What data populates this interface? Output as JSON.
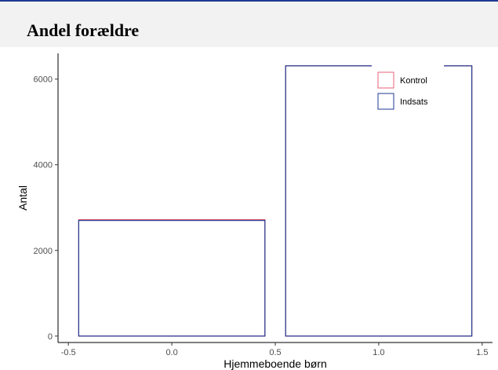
{
  "header": {
    "title": "Andel forældre"
  },
  "chart_data": {
    "type": "bar",
    "xlabel": "Hjemmeboende børn",
    "ylabel": "Antal",
    "x_ticks": [
      "-0.5",
      "0.0",
      "0.5",
      "1.0",
      "1.5"
    ],
    "y_ticks": [
      "0",
      "2000",
      "4000",
      "6000"
    ],
    "xlim": [
      -0.55,
      1.55
    ],
    "ylim": [
      -150,
      6600
    ],
    "bin_width": 0.9,
    "categories": [
      0,
      1
    ],
    "series": [
      {
        "name": "Kontrol",
        "color": "#e8607a",
        "values": [
          2720,
          6310
        ]
      },
      {
        "name": "Indsats",
        "color": "#1f3a93",
        "values": [
          2700,
          6310
        ]
      }
    ],
    "legend_position": "top-right",
    "fill": "none",
    "grid": false
  }
}
